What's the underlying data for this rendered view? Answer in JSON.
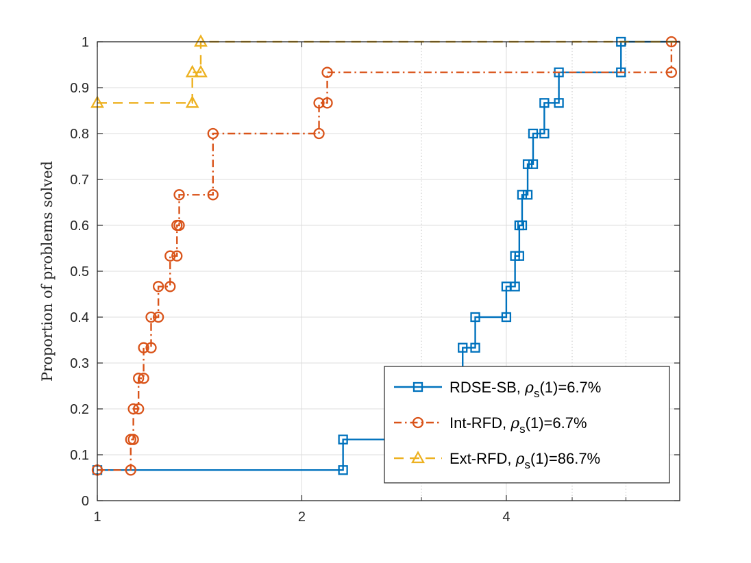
{
  "chart_data": {
    "type": "line",
    "subtype": "step",
    "title": "",
    "xlabel": "",
    "ylabel": "Proportion of problems solved",
    "xscale": "log2",
    "xlim": [
      1,
      7.2
    ],
    "ylim": [
      0,
      1
    ],
    "xticks": [
      1,
      2,
      4
    ],
    "xtick_labels": [
      "1",
      "2",
      "4"
    ],
    "minor_xticks": [
      3,
      5,
      6
    ],
    "yticks": [
      0,
      0.1,
      0.2,
      0.3,
      0.4,
      0.5,
      0.6,
      0.7,
      0.8,
      0.9,
      1
    ],
    "ytick_labels": [
      "0",
      "0.1",
      "0.2",
      "0.3",
      "0.4",
      "0.5",
      "0.6",
      "0.7",
      "0.8",
      "0.9",
      "1"
    ],
    "grid": true,
    "legend_position": "bottom-right",
    "series": [
      {
        "name": "RDSE-SB",
        "legend_label": "RDSE-SB, ",
        "legend_rho": "ρ",
        "legend_sub": "s",
        "legend_value": "(1)=6.7%",
        "color": "#0072BD",
        "marker": "square",
        "linestyle": "solid",
        "x": [
          1,
          2.3,
          3.45,
          3.6,
          4.0,
          4.12,
          4.18,
          4.22,
          4.3,
          4.38,
          4.55,
          4.78,
          5.9
        ],
        "y": [
          0.0667,
          0.1333,
          0.3333,
          0.4,
          0.4667,
          0.5333,
          0.6,
          0.6667,
          0.7333,
          0.8,
          0.8667,
          0.9333,
          1.0
        ]
      },
      {
        "name": "Int-RFD",
        "legend_label": "Int-RFD, ",
        "legend_rho": "ρ",
        "legend_sub": "s",
        "legend_value": "(1)=6.7%",
        "color": "#D95319",
        "marker": "circle",
        "linestyle": "dashdot",
        "x": [
          1,
          1.12,
          1.13,
          1.15,
          1.17,
          1.2,
          1.23,
          1.28,
          1.31,
          1.32,
          1.48,
          2.12,
          2.18,
          7.0
        ],
        "y": [
          0.0667,
          0.1333,
          0.2,
          0.2667,
          0.3333,
          0.4,
          0.4667,
          0.5333,
          0.6,
          0.6667,
          0.8,
          0.8667,
          0.9333,
          1.0
        ]
      },
      {
        "name": "Ext-RFD",
        "legend_label": "Ext-RFD, ",
        "legend_rho": "ρ",
        "legend_sub": "s",
        "legend_value": "(1)=86.7%",
        "color": "#EDB120",
        "marker": "triangle",
        "linestyle": "dashed",
        "x": [
          1,
          1.38,
          1.42
        ],
        "y": [
          0.8667,
          0.9333,
          1.0
        ]
      }
    ]
  }
}
